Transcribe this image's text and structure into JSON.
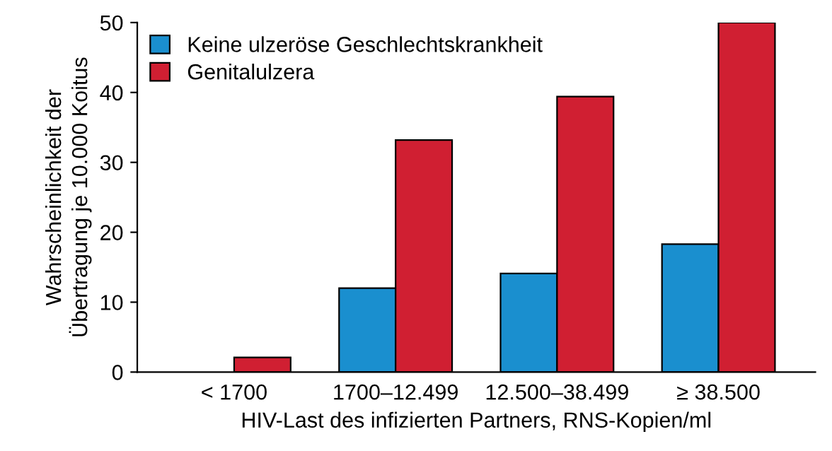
{
  "chart_data": {
    "type": "bar",
    "xlabel": "HIV-Last des infizierten Partners, RNS-Kopien/ml",
    "ylabel": "Wahrscheinlichkeit der\nÜbertragung je 10.000 Koitus",
    "categories": [
      "< 1700",
      "1700–12.499",
      "12.500–38.499",
      "≥ 38.500"
    ],
    "series": [
      {
        "name": "Keine ulzeröse Geschlechtskrankheit",
        "color": "#1a8fcf",
        "values": [
          null,
          12.0,
          14.1,
          18.3
        ]
      },
      {
        "name": "Genitalulzera",
        "color": "#d01f32",
        "values": [
          2.1,
          33.2,
          39.4,
          50.0
        ]
      }
    ],
    "ylim": [
      0,
      50
    ],
    "yticks": [
      0,
      10,
      20,
      30,
      40,
      50
    ],
    "grid": false,
    "legend": "top left"
  }
}
